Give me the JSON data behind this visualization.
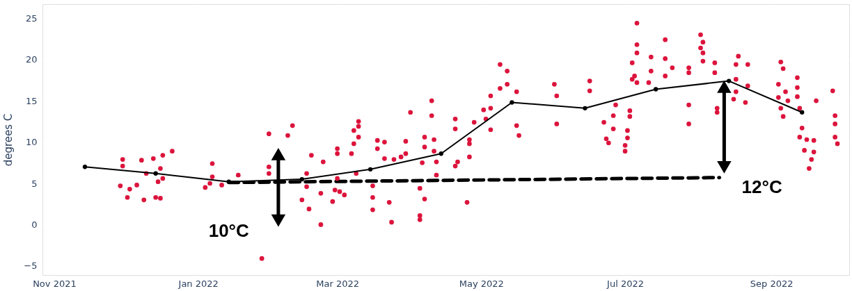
{
  "chart_data": {
    "type": "scatter",
    "ylabel": "degrees C",
    "xlim": [
      "2021-10-27",
      "2022-10-04"
    ],
    "xticks": [
      {
        "value": "2021-11-01",
        "label": "Nov 2021"
      },
      {
        "value": "2022-01-01",
        "label": "Jan 2022"
      },
      {
        "value": "2022-03-01",
        "label": "Mar 2022"
      },
      {
        "value": "2022-05-01",
        "label": "May 2022"
      },
      {
        "value": "2022-07-01",
        "label": "Jul 2022"
      },
      {
        "value": "2022-09-01",
        "label": "Sep 2022"
      }
    ],
    "ylim": [
      -6.1,
      26.7
    ],
    "yticks": [
      -5,
      0,
      5,
      10,
      15,
      20,
      25
    ],
    "grid": true,
    "annotations": [
      "10°C",
      "12°C"
    ],
    "series": [
      {
        "color": "#dc143c",
        "marker": "circle",
        "x": [
          "2021-11-30",
          "2021-11-30",
          "2021-11-29",
          "2021-12-02",
          "2021-12-03",
          "2021-12-06",
          "2021-12-08",
          "2021-12-09",
          "2021-12-10",
          "2021-12-13",
          "2021-12-14",
          "2021-12-16",
          "2021-12-15",
          "2021-12-16",
          "2021-12-17",
          "2021-12-17",
          "2021-12-21",
          "2022-01-04",
          "2022-01-06",
          "2022-01-07",
          "2022-01-07",
          "2022-01-11",
          "2022-01-18",
          "2022-01-28",
          "2022-01-31",
          "2022-01-31",
          "2022-01-31",
          "2022-02-08",
          "2022-02-10",
          "2022-02-14",
          "2022-02-16",
          "2022-02-16",
          "2022-02-17",
          "2022-02-18",
          "2022-02-22",
          "2022-02-22",
          "2022-02-23",
          "2022-02-27",
          "2022-02-28",
          "2022-03-01",
          "2022-03-01",
          "2022-03-01",
          "2022-03-02",
          "2022-03-04",
          "2022-03-07",
          "2022-03-08",
          "2022-03-08",
          "2022-03-09",
          "2022-03-10",
          "2022-03-10",
          "2022-03-10",
          "2022-03-16",
          "2022-03-16",
          "2022-03-16",
          "2022-03-18",
          "2022-03-18",
          "2022-03-21",
          "2022-03-21",
          "2022-03-23",
          "2022-03-24",
          "2022-03-25",
          "2022-03-28",
          "2022-03-30",
          "2022-03-30",
          "2022-04-01",
          "2022-04-05",
          "2022-04-05",
          "2022-04-05",
          "2022-04-06",
          "2022-04-07",
          "2022-04-07",
          "2022-04-07",
          "2022-04-10",
          "2022-04-10",
          "2022-04-11",
          "2022-04-11",
          "2022-04-12",
          "2022-04-12",
          "2022-04-20",
          "2022-04-20",
          "2022-04-20",
          "2022-04-21",
          "2022-04-25",
          "2022-04-26",
          "2022-04-26",
          "2022-04-26",
          "2022-04-28",
          "2022-05-02",
          "2022-05-03",
          "2022-05-05",
          "2022-05-05",
          "2022-05-05",
          "2022-05-09",
          "2022-05-09",
          "2022-05-12",
          "2022-05-12",
          "2022-05-16",
          "2022-05-16",
          "2022-05-17",
          "2022-06-01",
          "2022-06-02",
          "2022-06-02",
          "2022-06-16",
          "2022-06-16",
          "2022-06-22",
          "2022-06-23",
          "2022-06-24",
          "2022-06-26",
          "2022-06-26",
          "2022-06-27",
          "2022-07-01",
          "2022-07-01",
          "2022-07-02",
          "2022-07-02",
          "2022-07-03",
          "2022-07-04",
          "2022-07-04",
          "2022-07-06",
          "2022-07-06",
          "2022-07-06",
          "2022-07-05",
          "2022-07-06",
          "2022-07-03",
          "2022-07-12",
          "2022-07-12",
          "2022-07-11",
          "2022-07-18",
          "2022-07-18",
          "2022-07-18",
          "2022-07-21",
          "2022-07-28",
          "2022-07-28",
          "2022-07-28",
          "2022-07-28",
          "2022-08-02",
          "2022-08-02",
          "2022-08-03",
          "2022-08-03",
          "2022-08-03",
          "2022-08-08",
          "2022-08-08",
          "2022-08-09",
          "2022-08-09",
          "2022-08-18",
          "2022-08-17",
          "2022-08-17",
          "2022-08-17",
          "2022-08-16",
          "2022-08-22",
          "2022-08-22",
          "2022-08-21",
          "2022-09-05",
          "2022-09-06",
          "2022-09-04",
          "2022-09-04",
          "2022-09-05",
          "2022-09-06",
          "2022-09-07",
          "2022-09-08",
          "2022-09-12",
          "2022-09-12",
          "2022-09-12",
          "2022-09-13",
          "2022-09-14",
          "2022-09-13",
          "2022-09-16",
          "2022-09-15",
          "2022-09-17",
          "2022-09-18",
          "2022-09-19",
          "2022-09-19",
          "2022-09-20",
          "2022-09-27",
          "2022-09-28",
          "2022-09-28",
          "2022-09-28",
          "2022-09-29"
        ],
        "values": [
          7.9,
          7.1,
          4.7,
          3.3,
          4.3,
          4.8,
          7.8,
          3.0,
          6.2,
          8.0,
          3.3,
          3.2,
          5.2,
          6.8,
          8.4,
          5.6,
          8.9,
          4.5,
          5.0,
          7.4,
          5.8,
          4.8,
          6.0,
          -4.1,
          7.0,
          6.2,
          11.0,
          10.8,
          12.0,
          3.0,
          6.2,
          4.6,
          1.9,
          8.4,
          3.8,
          0.0,
          7.6,
          2.8,
          4.2,
          9.2,
          8.6,
          5.6,
          4.0,
          3.6,
          8.6,
          11.4,
          9.8,
          6.2,
          12.5,
          11.9,
          10.6,
          4.7,
          3.3,
          1.8,
          10.2,
          9.2,
          10.0,
          8.0,
          2.7,
          0.3,
          7.9,
          8.2,
          10.1,
          8.6,
          13.6,
          4.4,
          1.1,
          0.6,
          7.5,
          9.4,
          3.1,
          10.6,
          15.0,
          13.2,
          10.3,
          8.9,
          7.6,
          6.0,
          12.8,
          11.6,
          7.1,
          7.6,
          2.7,
          10.3,
          8.2,
          9.8,
          12.4,
          13.9,
          12.8,
          15.6,
          14.1,
          11.5,
          19.4,
          16.5,
          18.6,
          17.0,
          16.1,
          12.0,
          10.8,
          17.0,
          15.6,
          12.2,
          17.4,
          16.2,
          12.4,
          10.4,
          9.9,
          13.2,
          11.6,
          14.5,
          9.6,
          8.9,
          10.5,
          11.4,
          13.8,
          19.6,
          17.6,
          24.4,
          21.8,
          20.8,
          18.0,
          17.2,
          13.1,
          20.3,
          18.6,
          17.2,
          22.4,
          20.1,
          18.0,
          19.0,
          19.0,
          18.4,
          14.5,
          12.2,
          23.0,
          21.4,
          22.1,
          20.8,
          19.8,
          19.6,
          18.4,
          14.1,
          13.6,
          20.4,
          19.4,
          17.6,
          16.1,
          15.2,
          19.4,
          16.8,
          14.8,
          19.7,
          18.9,
          17.0,
          15.4,
          14.1,
          13.1,
          16.1,
          15.0,
          17.8,
          16.6,
          15.5,
          14.1,
          11.7,
          10.6,
          10.3,
          9.0,
          6.8,
          7.9,
          10.2,
          8.8,
          15.0,
          16.2,
          13.2,
          12.2,
          10.6,
          9.8
        ]
      },
      {
        "type": "line",
        "color": "#000000",
        "marker": "circle",
        "line_style": "solid",
        "x": [
          "2021-11-14",
          "2021-12-14",
          "2022-01-14",
          "2022-02-14",
          "2022-03-15",
          "2022-04-14",
          "2022-05-14",
          "2022-06-14",
          "2022-07-14",
          "2022-08-14",
          "2022-09-14"
        ],
        "values": [
          7.0,
          6.2,
          5.2,
          5.5,
          6.7,
          8.6,
          14.8,
          14.1,
          16.4,
          17.4,
          13.6
        ]
      },
      {
        "type": "line",
        "color": "#000000",
        "marker": "none",
        "line_style": "dashed",
        "x": [
          "2022-01-14",
          "2022-08-10"
        ],
        "values": [
          5.1,
          5.7
        ]
      }
    ]
  }
}
